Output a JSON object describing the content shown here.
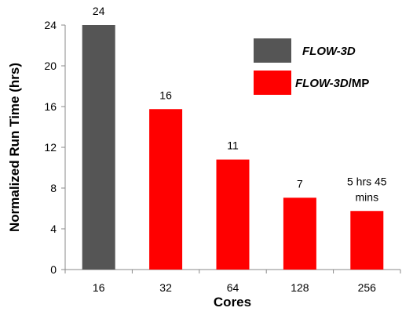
{
  "chart_data": {
    "type": "bar",
    "categories": [
      "16",
      "32",
      "64",
      "128",
      "256"
    ],
    "values": [
      24,
      15.75,
      10.8,
      7.05,
      5.75
    ],
    "data_labels": [
      "24",
      "16",
      "11",
      "7",
      "5 hrs 45 mins"
    ],
    "bar_colors": [
      "#555555",
      "#ff0000",
      "#ff0000",
      "#ff0000",
      "#ff0000"
    ],
    "xlabel": "Cores",
    "ylabel": "Normalized Run Time (hrs)",
    "ylim": [
      0,
      24
    ],
    "yticks": [
      0,
      4,
      8,
      12,
      16,
      20,
      24
    ],
    "grid": false,
    "legend_position": "top-right",
    "legend": [
      {
        "name": "FLOW-3D",
        "color": "#555555"
      },
      {
        "name": "FLOW-3D",
        "suffix": "/MP",
        "color": "#ff0000"
      }
    ]
  }
}
